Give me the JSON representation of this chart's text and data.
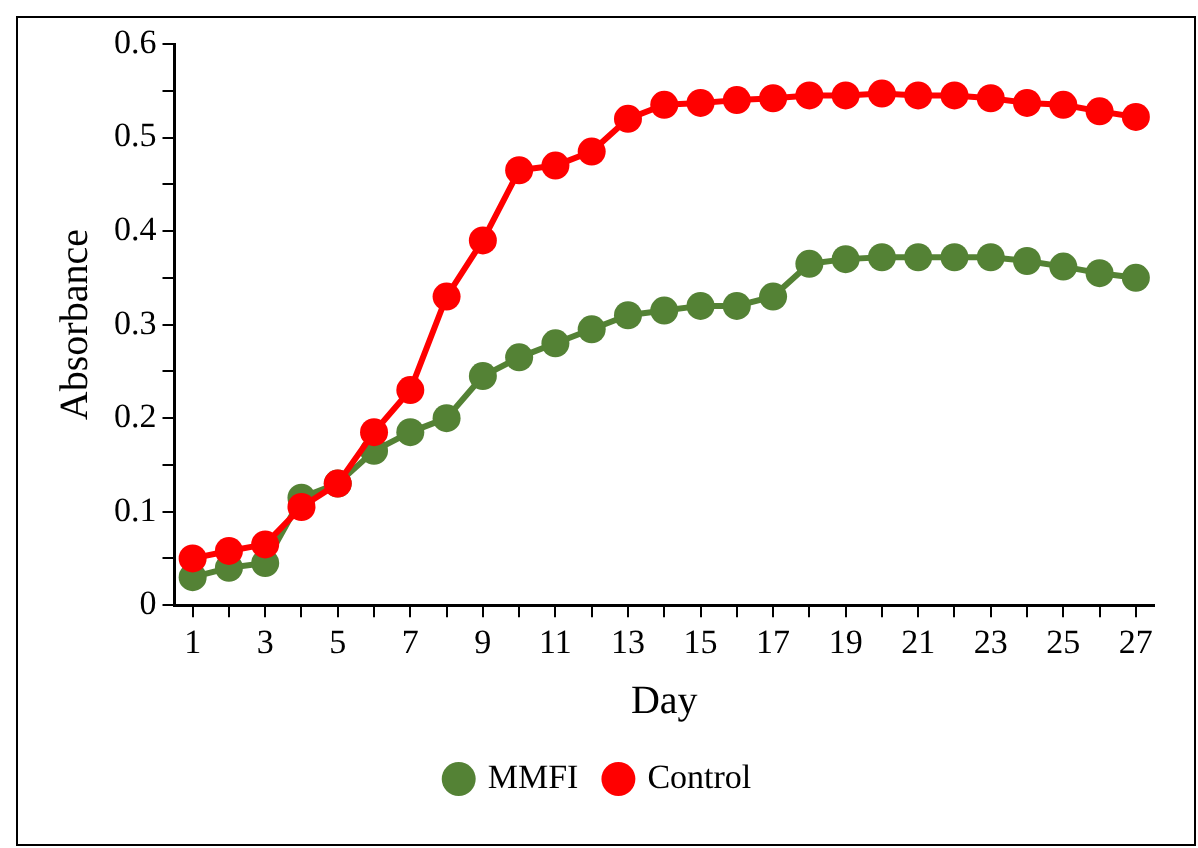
{
  "chart_data": {
    "type": "line",
    "xlabel": "Day",
    "ylabel": "Absorbance",
    "x": [
      1,
      2,
      3,
      4,
      5,
      6,
      7,
      8,
      9,
      10,
      11,
      12,
      13,
      14,
      15,
      16,
      17,
      18,
      19,
      20,
      21,
      22,
      23,
      24,
      25,
      26,
      27
    ],
    "series": [
      {
        "name": "MMFI",
        "color": "#548235",
        "values": [
          0.03,
          0.04,
          0.045,
          0.115,
          0.13,
          0.165,
          0.185,
          0.2,
          0.245,
          0.265,
          0.28,
          0.295,
          0.31,
          0.315,
          0.32,
          0.32,
          0.33,
          0.365,
          0.37,
          0.372,
          0.372,
          0.372,
          0.372,
          0.368,
          0.362,
          0.355,
          0.35
        ]
      },
      {
        "name": "Control",
        "color": "#ff0000",
        "values": [
          0.05,
          0.058,
          0.065,
          0.105,
          0.13,
          0.185,
          0.23,
          0.33,
          0.39,
          0.465,
          0.47,
          0.485,
          0.52,
          0.535,
          0.537,
          0.54,
          0.542,
          0.545,
          0.545,
          0.547,
          0.545,
          0.545,
          0.542,
          0.537,
          0.535,
          0.528,
          0.522
        ]
      }
    ],
    "xlim": [
      0.5,
      27.5
    ],
    "xticks": [
      1,
      {
        "value": 2,
        "label": null
      },
      3,
      {
        "value": 4,
        "label": null
      },
      5,
      {
        "value": 6,
        "label": null
      },
      7,
      {
        "value": 8,
        "label": null
      },
      9,
      {
        "value": 10,
        "label": null
      },
      11,
      {
        "value": 12,
        "label": null
      },
      13,
      {
        "value": 14,
        "label": null
      },
      15,
      {
        "value": 16,
        "label": null
      },
      17,
      {
        "value": 18,
        "label": null
      },
      19,
      {
        "value": 20,
        "label": null
      },
      21,
      {
        "value": 22,
        "label": null
      },
      23,
      {
        "value": 24,
        "label": null
      },
      25,
      {
        "value": 26,
        "label": null
      },
      27
    ],
    "ylim": [
      0,
      0.6
    ],
    "yticks": [
      0,
      {
        "value": 0.05,
        "label": null
      },
      0.1,
      {
        "value": 0.15,
        "label": null
      },
      0.2,
      {
        "value": 0.25,
        "label": null
      },
      0.3,
      {
        "value": 0.35,
        "label": null
      },
      0.4,
      {
        "value": 0.45,
        "label": null
      },
      0.5,
      {
        "value": 0.55,
        "label": null
      },
      0.6
    ],
    "grid": false,
    "legend": "bottom",
    "marker": "circle",
    "line_style": "solid"
  }
}
